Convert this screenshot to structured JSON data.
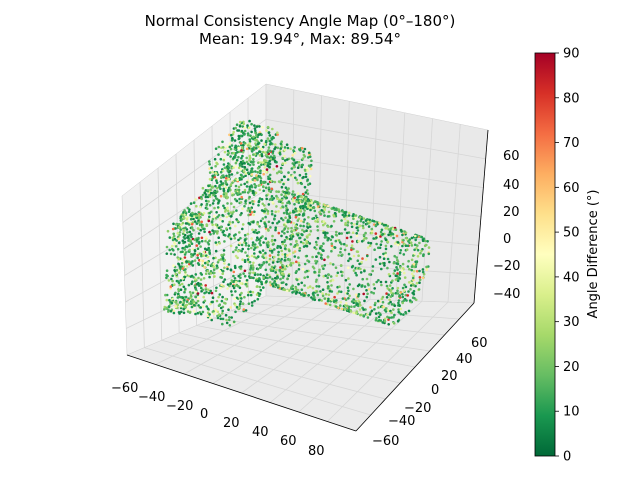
{
  "chart_data": {
    "type": "scatter",
    "projection": "3d",
    "title_line1": "Normal Consistency Angle Map (0°–180°)",
    "title_line2": "Mean: 19.94°, Max: 89.54°",
    "mean_angle": 19.94,
    "max_angle": 89.54,
    "x_ticks": [
      "−60",
      "−40",
      "−20",
      "0",
      "20",
      "40",
      "60",
      "80"
    ],
    "y_ticks": [
      "−60",
      "−40",
      "−20",
      "0",
      "20",
      "40",
      "60"
    ],
    "z_ticks": [
      "60",
      "40",
      "20",
      "0",
      "−20",
      "−40"
    ],
    "xlim": [
      -65,
      95
    ],
    "ylim": [
      -70,
      70
    ],
    "zlim": [
      -55,
      70
    ],
    "colorbar": {
      "label": "Angle Difference (°)",
      "min": 0,
      "max": 90,
      "ticks": [
        "90",
        "80",
        "70",
        "60",
        "50",
        "40",
        "30",
        "20",
        "10",
        "0"
      ],
      "colormap": "RdYlGn_r"
    },
    "grid": true,
    "object": "camera-shaped point cloud",
    "colors": {
      "low": "#006837",
      "mid": "#ffffbf",
      "high": "#a50026",
      "pane": "#f2f2f2"
    }
  }
}
